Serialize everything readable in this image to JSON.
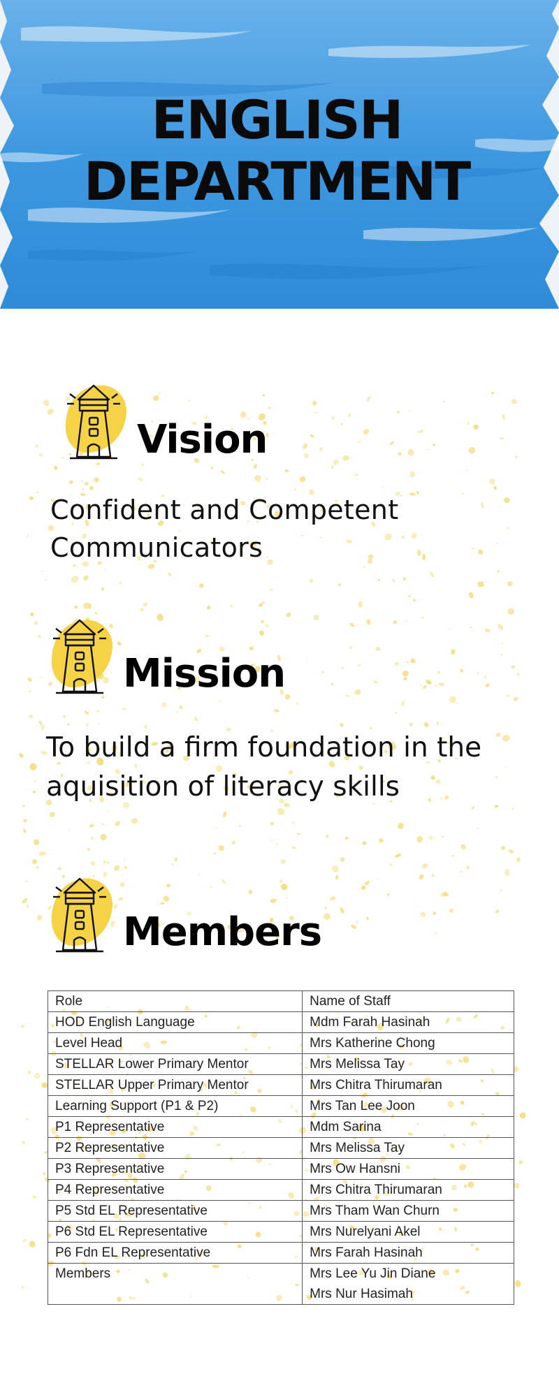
{
  "header": {
    "title_line1": "ENGLISH",
    "title_line2": "DEPARTMENT",
    "banner_color": "#3b95df"
  },
  "vision": {
    "heading": "Vision",
    "text_line1": "Confident and Competent",
    "text_line2": "Communicators",
    "icon": "lighthouse-icon"
  },
  "mission": {
    "heading": "Mission",
    "text_line1": "To build a firm foundation in the",
    "text_line2": "aquisition of literacy skills",
    "icon": "lighthouse-icon"
  },
  "members": {
    "heading": "Members",
    "icon": "lighthouse-icon",
    "table": {
      "headers": [
        "Role",
        "Name of Staff"
      ],
      "rows": [
        {
          "role": "HOD English Language",
          "staff": [
            "Mdm Farah Hasinah"
          ]
        },
        {
          "role": "Level Head",
          "staff": [
            "Mrs Katherine Chong"
          ]
        },
        {
          "role": "STELLAR Lower Primary Mentor",
          "staff": [
            "Mrs Melissa Tay"
          ]
        },
        {
          "role": "STELLAR Upper Primary Mentor",
          "staff": [
            "Mrs Chitra Thirumaran"
          ]
        },
        {
          "role": "Learning Support (P1 & P2)",
          "staff": [
            "Mrs Tan Lee Joon"
          ]
        },
        {
          "role": "P1 Representative",
          "staff": [
            "Mdm Sarina"
          ]
        },
        {
          "role": "P2 Representative",
          "staff": [
            "Mrs Melissa Tay"
          ]
        },
        {
          "role": "P3 Representative",
          "staff": [
            "Mrs Ow Hansni"
          ]
        },
        {
          "role": "P4 Representative",
          "staff": [
            "Mrs Chitra Thirumaran"
          ]
        },
        {
          "role": "P5 Std EL Representative",
          "staff": [
            "Mrs Tham Wan Churn"
          ]
        },
        {
          "role": "P6 Std EL Representative",
          "staff": [
            "Mrs Nurelyani Akel"
          ]
        },
        {
          "role": "P6 Fdn EL Representative",
          "staff": [
            "Mrs Farah Hasinah"
          ]
        },
        {
          "role": "Members",
          "staff": [
            "Mrs Lee Yu Jin Diane",
            "Mrs Nur Hasimah"
          ]
        }
      ]
    }
  },
  "colors": {
    "accent_yellow": "#f5d246",
    "speckle_yellow": "#f3db7a",
    "table_border": "#555555"
  }
}
